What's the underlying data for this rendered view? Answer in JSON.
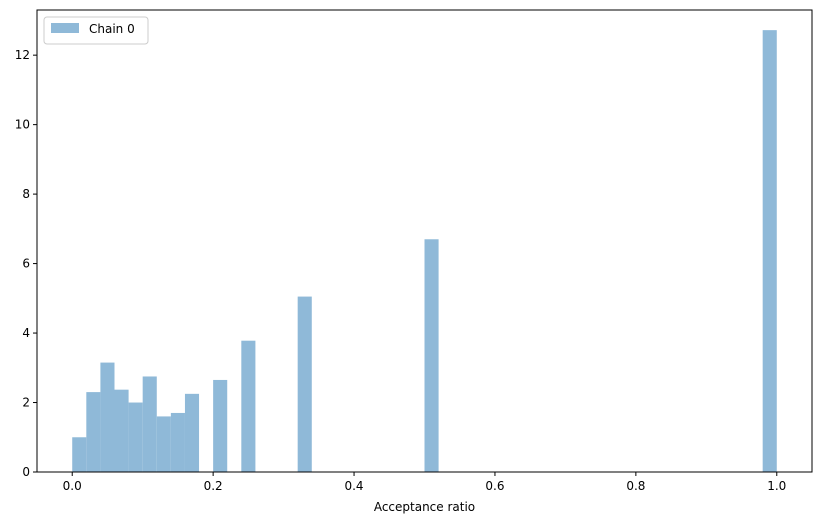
{
  "chart_data": {
    "type": "bar",
    "title": "",
    "xlabel": "Acceptance ratio",
    "ylabel": "",
    "xlim": [
      -0.05,
      1.05
    ],
    "ylim": [
      0,
      13.3
    ],
    "xticks": [
      0.0,
      0.2,
      0.4,
      0.6,
      0.8,
      1.0
    ],
    "xtick_labels": [
      "0.0",
      "0.2",
      "0.4",
      "0.6",
      "0.8",
      "1.0"
    ],
    "yticks": [
      0,
      2,
      4,
      6,
      8,
      10,
      12
    ],
    "ytick_labels": [
      "0",
      "2",
      "4",
      "6",
      "8",
      "10",
      "12"
    ],
    "bin_width": 0.02,
    "legend": {
      "position": "top-left",
      "entries": [
        "Chain 0"
      ]
    },
    "grid": false,
    "series": [
      {
        "name": "Chain 0",
        "color": "#8fb9d8",
        "bins": [
          {
            "x": 0.0,
            "value": 1.0
          },
          {
            "x": 0.02,
            "value": 2.3
          },
          {
            "x": 0.04,
            "value": 3.15
          },
          {
            "x": 0.06,
            "value": 2.37
          },
          {
            "x": 0.08,
            "value": 2.0
          },
          {
            "x": 0.1,
            "value": 2.75
          },
          {
            "x": 0.12,
            "value": 1.6
          },
          {
            "x": 0.14,
            "value": 1.7
          },
          {
            "x": 0.16,
            "value": 2.25
          },
          {
            "x": 0.2,
            "value": 2.65
          },
          {
            "x": 0.24,
            "value": 3.78
          },
          {
            "x": 0.32,
            "value": 5.05
          },
          {
            "x": 0.5,
            "value": 6.7
          },
          {
            "x": 0.98,
            "value": 12.72
          }
        ]
      }
    ]
  }
}
